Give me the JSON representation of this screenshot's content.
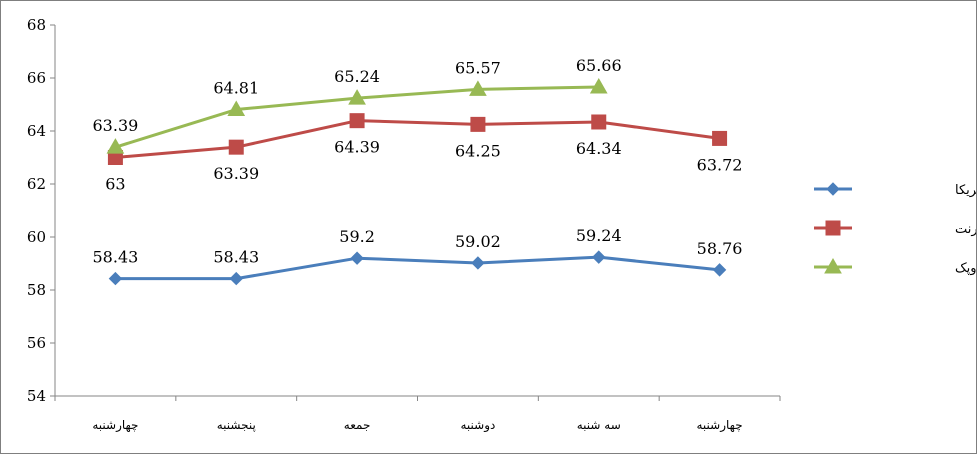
{
  "chart_data": {
    "type": "line",
    "categories": [
      "چهارشنبه",
      "پنجشنبه",
      "جمعه",
      "دوشنبه",
      "سه شنبه",
      "چهارشنبه"
    ],
    "ylim": [
      54,
      68
    ],
    "yticks": [
      54,
      56,
      58,
      60,
      62,
      64,
      66,
      68
    ],
    "grid": false,
    "legend_position": "right",
    "series": [
      {
        "name": "نفت خام آمریکا",
        "color": "#4a7ebb",
        "marker": "diamond",
        "values": [
          58.43,
          58.43,
          59.2,
          59.02,
          59.24,
          58.76
        ],
        "labels": [
          "58.43",
          "58.43",
          "59.2",
          "59.02",
          "59.24",
          "58.76"
        ],
        "label_position": "above"
      },
      {
        "name": "نفت برنت",
        "color": "#be4b48",
        "marker": "square",
        "values": [
          63,
          63.39,
          64.39,
          64.25,
          64.34,
          63.72
        ],
        "labels": [
          "63",
          "63.39",
          "64.39",
          "64.25",
          "64.34",
          "63.72"
        ],
        "label_position": "below"
      },
      {
        "name": "نفت اوپک",
        "color": "#98b954",
        "marker": "triangle",
        "values": [
          63.39,
          64.81,
          65.24,
          65.57,
          65.66,
          null
        ],
        "labels": [
          "63.39",
          "64.81",
          "65.24",
          "65.57",
          "65.66",
          null
        ],
        "label_position": "above"
      }
    ]
  }
}
